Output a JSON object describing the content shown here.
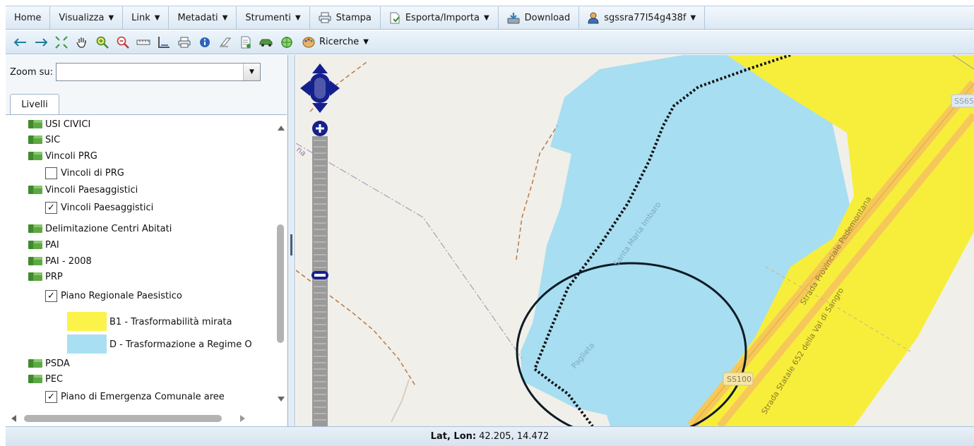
{
  "menu": {
    "home": "Home",
    "visualizza": "Visualizza",
    "link": "Link",
    "metadati": "Metadati",
    "strumenti": "Strumenti",
    "stampa": "Stampa",
    "esporta": "Esporta/Importa",
    "download": "Download",
    "user": "sgssra77l54g438f",
    "caret": "▼"
  },
  "toolbar": {
    "ricerche": "Ricerche",
    "icons": [
      "arrow-left-icon",
      "arrow-right-icon",
      "zoom-extent-icon",
      "pan-hand-icon",
      "zoom-in-icon",
      "zoom-out-icon",
      "measure-ruler-icon",
      "measure-area-icon",
      "print-icon",
      "info-icon",
      "eraser-icon",
      "document-icon",
      "car-icon",
      "target-icon",
      "palette-icon"
    ]
  },
  "left_panel": {
    "zoom_label": "Zoom su:",
    "zoom_value": "",
    "tab": "Livelli",
    "tree": [
      {
        "type": "folder",
        "label": "USI CIVICI"
      },
      {
        "type": "folder",
        "label": "SIC"
      },
      {
        "type": "folder",
        "label": "Vincoli PRG"
      },
      {
        "type": "layer",
        "label": "Vincoli di PRG",
        "checked": ""
      },
      {
        "type": "folder",
        "label": "Vincoli Paesaggistici"
      },
      {
        "type": "layer",
        "label": "Vincoli Paesaggistici",
        "checked": "✓"
      },
      {
        "type": "folder",
        "label": "Delimitazione Centri Abitati"
      },
      {
        "type": "folder",
        "label": "PAI"
      },
      {
        "type": "folder",
        "label": "PAI - 2008"
      },
      {
        "type": "folder",
        "label": "PRP"
      },
      {
        "type": "layer",
        "label": "Piano Regionale Paesistico",
        "checked": "✓"
      },
      {
        "type": "folder",
        "label": "PSDA"
      },
      {
        "type": "folder",
        "label": "PEC"
      },
      {
        "type": "layer",
        "label": "Piano di Emergenza Comunale aree",
        "checked": "✓"
      }
    ],
    "legend": [
      {
        "label": "B1 - Trasformabilità mirata",
        "color": "#fbf34a"
      },
      {
        "label": "D - Trasformazione a Regime O",
        "color": "#a9dff2"
      }
    ]
  },
  "map": {
    "colors": {
      "background": "#f1efe9",
      "yellow": "#f7ee3c",
      "blue": "#a7def1",
      "road": "#f6c85a"
    },
    "labels": {
      "santa_maria": "Santa Maria Imbaro",
      "paglieta": "Paglieta",
      "provinciale": "Strada Provinciale Pedemontana",
      "statale": "Strada Statale 652 della Val di Sangro",
      "ss100": "SS100",
      "ss65": "SS65",
      "na": "na"
    }
  },
  "status": {
    "label": "Lat, Lon:",
    "value": "42.205, 14.472"
  }
}
